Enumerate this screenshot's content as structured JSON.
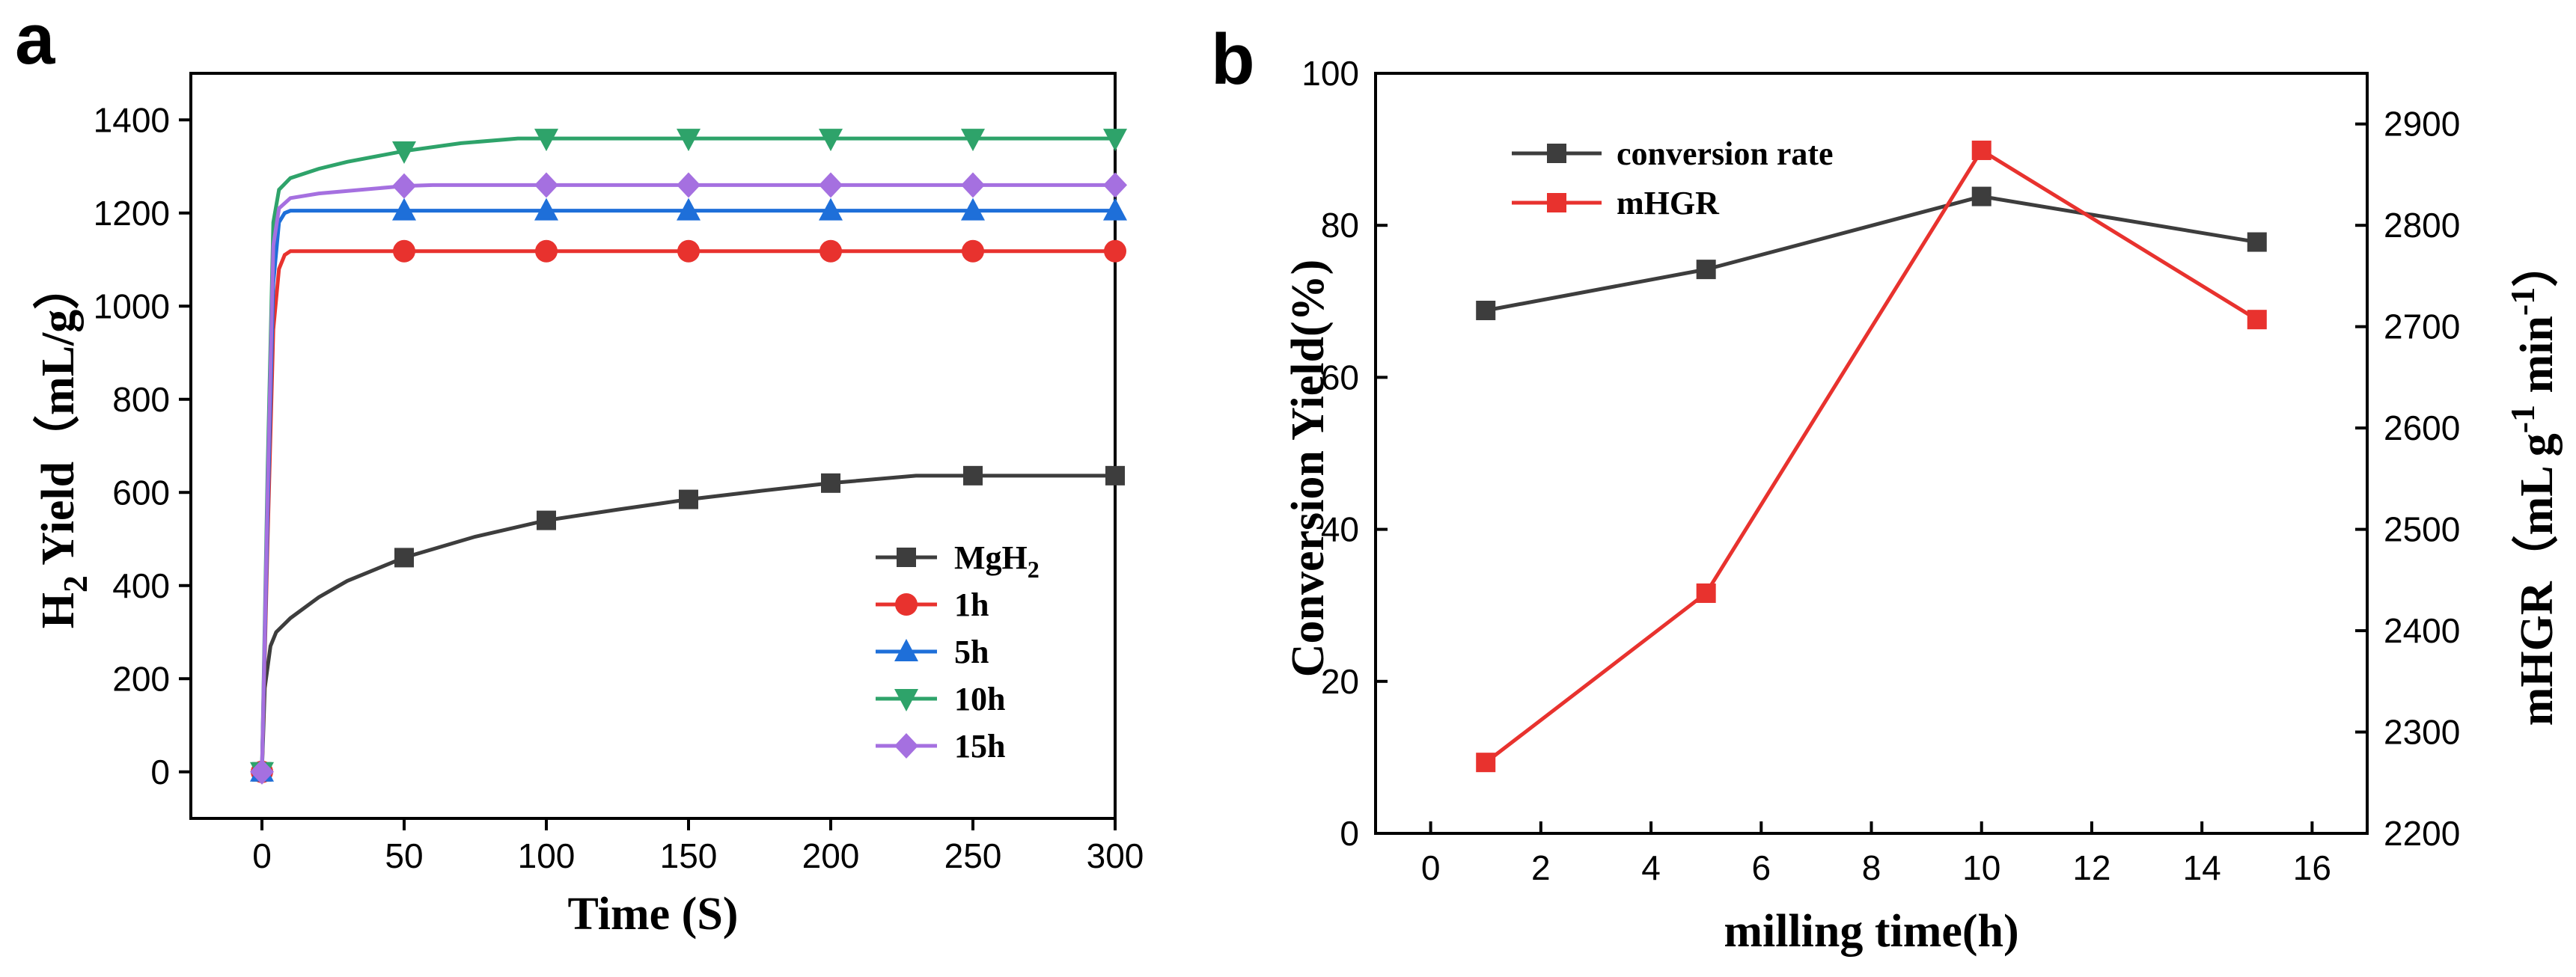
{
  "panels": {
    "a": {
      "letter": "a"
    },
    "b": {
      "letter": "b"
    }
  },
  "chart_data": [
    {
      "type": "line",
      "panel": "a",
      "title": "",
      "xlabel": "Time (S)",
      "ylabel_main": "H",
      "ylabel_sub": "2",
      "ylabel_rest": " Yield（mL/g）",
      "xlim": [
        -25,
        300
      ],
      "ylim": [
        -100,
        1500
      ],
      "xticks": [
        0,
        50,
        100,
        150,
        200,
        250,
        300
      ],
      "yticks": [
        0,
        200,
        400,
        600,
        800,
        1000,
        1200,
        1400
      ],
      "legend_position": "bottom-right",
      "series": [
        {
          "name": "MgH",
          "name_sub": "2",
          "color": "#3d3d3d",
          "marker": "square",
          "x": [
            0,
            1,
            3,
            5,
            10,
            20,
            30,
            50,
            75,
            100,
            125,
            150,
            175,
            200,
            230,
            250,
            275,
            300
          ],
          "y": [
            0,
            180,
            270,
            300,
            330,
            375,
            410,
            460,
            505,
            540,
            563,
            585,
            603,
            620,
            636,
            636,
            636,
            636
          ],
          "marker_x": [
            0,
            50,
            100,
            150,
            200,
            250,
            300
          ]
        },
        {
          "name": "1h",
          "color": "#e8322e",
          "marker": "circle",
          "x": [
            0,
            2,
            4,
            6,
            8,
            10,
            50,
            100,
            150,
            200,
            250,
            300
          ],
          "y": [
            0,
            500,
            950,
            1080,
            1110,
            1118,
            1118,
            1118,
            1118,
            1118,
            1118,
            1118
          ],
          "marker_x": [
            0,
            50,
            100,
            150,
            200,
            250,
            300
          ]
        },
        {
          "name": "5h",
          "color": "#1e6fd9",
          "marker": "triangle-up",
          "x": [
            0,
            2,
            4,
            6,
            8,
            10,
            50,
            100,
            150,
            200,
            250,
            300
          ],
          "y": [
            0,
            550,
            1050,
            1180,
            1200,
            1205,
            1205,
            1205,
            1205,
            1205,
            1205,
            1205
          ],
          "marker_x": [
            0,
            50,
            100,
            150,
            200,
            250,
            300
          ]
        },
        {
          "name": "10h",
          "color": "#2ea36a",
          "marker": "triangle-down",
          "x": [
            0,
            2,
            4,
            6,
            10,
            20,
            30,
            50,
            70,
            90,
            100,
            150,
            200,
            250,
            300
          ],
          "y": [
            0,
            650,
            1180,
            1250,
            1275,
            1295,
            1310,
            1333,
            1350,
            1360,
            1360,
            1360,
            1360,
            1360,
            1360
          ],
          "marker_x": [
            0,
            50,
            100,
            150,
            200,
            250,
            300
          ]
        },
        {
          "name": "15h",
          "color": "#a570e0",
          "marker": "diamond",
          "x": [
            0,
            2,
            4,
            6,
            10,
            20,
            35,
            50,
            60,
            100,
            150,
            200,
            250,
            300
          ],
          "y": [
            0,
            600,
            1130,
            1210,
            1232,
            1242,
            1250,
            1258,
            1260,
            1260,
            1260,
            1260,
            1260,
            1260
          ],
          "marker_x": [
            0,
            50,
            100,
            150,
            200,
            250,
            300
          ]
        }
      ]
    },
    {
      "type": "line",
      "panel": "b",
      "title": "",
      "xlabel": "milling time(h)",
      "ylabel_left": "Conversion Yield(%)",
      "ylabel_right": "mHGR（mL g",
      "ylabel_right_sup1": "-1",
      "ylabel_right_mid": " min",
      "ylabel_right_sup2": "-1",
      "ylabel_right_end": "）",
      "xlim": [
        -1,
        17
      ],
      "ylim_left": [
        0,
        100
      ],
      "ylim_right": [
        2200,
        2950
      ],
      "xticks": [
        0,
        2,
        4,
        6,
        8,
        10,
        12,
        14,
        16
      ],
      "yticks_left": [
        0,
        20,
        40,
        60,
        80,
        100
      ],
      "yticks_right": [
        2200,
        2300,
        2400,
        2500,
        2600,
        2700,
        2800,
        2900
      ],
      "legend_position": "top-left",
      "series": [
        {
          "name": "conversion rate",
          "color": "#3d3d3d",
          "marker": "square",
          "axis": "left",
          "x": [
            1,
            5,
            10,
            15
          ],
          "y": [
            68.8,
            74.2,
            83.8,
            77.8
          ]
        },
        {
          "name": "mHGR",
          "color": "#e8322e",
          "marker": "square",
          "axis": "right",
          "x": [
            1,
            5,
            10,
            15
          ],
          "y": [
            2270,
            2437,
            2874,
            2707
          ]
        }
      ]
    }
  ]
}
